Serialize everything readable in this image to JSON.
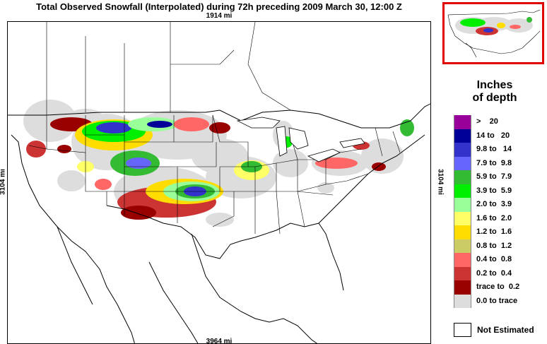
{
  "title": "Total Observed Snowfall (Interpolated) during 72h preceding 2009 March 30, 12:00 Z",
  "dimensions": {
    "top": "1914 mi",
    "bottom": "3964 mi",
    "left": "3104 mi",
    "right": "3104 mi"
  },
  "legend": {
    "title_line1": "Inches",
    "title_line2": "of depth",
    "items": [
      {
        "label": ">    20",
        "color": "#990099"
      },
      {
        "label": "14 to   20",
        "color": "#000099"
      },
      {
        "label": "9.8 to   14",
        "color": "#3333cc"
      },
      {
        "label": "7.9 to  9.8",
        "color": "#6666ff"
      },
      {
        "label": "5.9 to  7.9",
        "color": "#33bb33"
      },
      {
        "label": "3.9 to  5.9",
        "color": "#00ee00"
      },
      {
        "label": "2.0 to  3.9",
        "color": "#99ff99"
      },
      {
        "label": "1.6 to  2.0",
        "color": "#ffff66"
      },
      {
        "label": "1.2 to  1.6",
        "color": "#ffdd00"
      },
      {
        "label": "0.8 to  1.2",
        "color": "#cccc66"
      },
      {
        "label": "0.4 to  0.8",
        "color": "#ff6666"
      },
      {
        "label": "0.2 to  0.4",
        "color": "#cc3333"
      },
      {
        "label": "trace to  0.2",
        "color": "#990000"
      },
      {
        "label": "0.0 to trace",
        "color": "#dddddd"
      }
    ],
    "not_estimated": "Not Estimated"
  },
  "colors": {
    "inset_border": "#e00000",
    "boundary": "#000000",
    "no_snow": "#dddddd"
  }
}
